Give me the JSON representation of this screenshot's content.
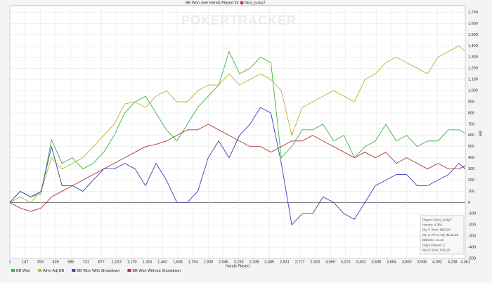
{
  "chart_data": {
    "type": "line",
    "title": "BB Won over Hands Played for",
    "player": "Nico_lucky7",
    "watermark": "POKERTRACKER",
    "x_label": "Hands Played",
    "y_label": "BB",
    "x": [
      1,
      100,
      200,
      300,
      400,
      500,
      600,
      700,
      800,
      900,
      1000,
      1100,
      1200,
      1300,
      1400,
      1500,
      1600,
      1700,
      1800,
      1900,
      2000,
      2100,
      2200,
      2300,
      2400,
      2500,
      2600,
      2700,
      2800,
      2900,
      3000,
      3100,
      3200,
      3300,
      3400,
      3500,
      3600,
      3700,
      3800,
      3900,
      4000,
      4100,
      4200,
      4300,
      4361
    ],
    "series": [
      {
        "name": "BB Won",
        "color": "#3cb43c",
        "values": [
          0,
          100,
          50,
          80,
          560,
          350,
          400,
          300,
          350,
          450,
          600,
          800,
          900,
          950,
          800,
          650,
          550,
          700,
          850,
          950,
          1050,
          1350,
          1150,
          1200,
          1300,
          1250,
          400,
          500,
          650,
          650,
          700,
          550,
          600,
          400,
          500,
          550,
          700,
          550,
          600,
          500,
          550,
          550,
          650,
          650,
          620
        ]
      },
      {
        "name": "All-in Adj BB",
        "color": "#b4b432",
        "values": [
          0,
          50,
          0,
          100,
          400,
          300,
          350,
          400,
          500,
          600,
          700,
          880,
          900,
          850,
          950,
          1000,
          900,
          900,
          1000,
          1050,
          1050,
          1150,
          1050,
          1100,
          1150,
          1100,
          1000,
          600,
          850,
          900,
          950,
          1000,
          950,
          900,
          1100,
          1150,
          1250,
          1300,
          1250,
          1200,
          1150,
          1300,
          1350,
          1400,
          1350
        ]
      },
      {
        "name": "BB Won With Showdown",
        "color": "#3c3cb4",
        "values": [
          0,
          100,
          50,
          100,
          500,
          150,
          150,
          100,
          200,
          300,
          300,
          350,
          300,
          150,
          350,
          200,
          0,
          0,
          100,
          400,
          550,
          400,
          600,
          700,
          850,
          800,
          350,
          -200,
          -100,
          -100,
          50,
          0,
          -100,
          -150,
          0,
          150,
          200,
          250,
          250,
          150,
          150,
          200,
          250,
          350,
          300
        ]
      },
      {
        "name": "BB Won Without Showdown",
        "color": "#b43232",
        "values": [
          0,
          -50,
          -80,
          -50,
          50,
          100,
          150,
          200,
          250,
          300,
          350,
          400,
          450,
          500,
          520,
          550,
          600,
          650,
          650,
          700,
          650,
          600,
          550,
          500,
          500,
          450,
          500,
          550,
          550,
          600,
          550,
          500,
          450,
          400,
          450,
          400,
          450,
          350,
          400,
          350,
          300,
          350,
          300,
          300,
          330
        ]
      }
    ],
    "xlim": [
      1,
      4361
    ],
    "xticks": [
      1,
      147,
      293,
      439,
      585,
      731,
      877,
      {
        "value": 1023,
        "label": "1,023"
      },
      {
        "value": 1170,
        "label": "1,170"
      },
      {
        "value": 1316,
        "label": "1,316"
      },
      {
        "value": 1462,
        "label": "1,462"
      },
      {
        "value": 1608,
        "label": "1,608"
      },
      {
        "value": 1754,
        "label": "1,754"
      },
      {
        "value": 1900,
        "label": "1,900"
      },
      {
        "value": 2046,
        "label": "2,046"
      },
      {
        "value": 2193,
        "label": "2,193"
      },
      {
        "value": 2339,
        "label": "2,339"
      },
      {
        "value": 2485,
        "label": "2,485"
      },
      {
        "value": 2631,
        "label": "2,631"
      },
      {
        "value": 2777,
        "label": "2,777"
      },
      {
        "value": 2923,
        "label": "2,923"
      },
      {
        "value": 3069,
        "label": "3,069"
      },
      {
        "value": 3215,
        "label": "3,215"
      },
      {
        "value": 3362,
        "label": "3,362"
      },
      {
        "value": 3508,
        "label": "3,508"
      },
      {
        "value": 3654,
        "label": "3,654"
      },
      {
        "value": 3800,
        "label": "3,800"
      },
      {
        "value": 3946,
        "label": "3,946"
      },
      {
        "value": 4092,
        "label": "4,092"
      },
      {
        "value": 4238,
        "label": "4,238"
      },
      {
        "value": 4361,
        "label": "4,361"
      }
    ],
    "ylim": [
      -500,
      1760
    ],
    "yticks": [
      -500,
      -400,
      -300,
      -200,
      -100,
      0,
      100,
      200,
      300,
      400,
      500,
      600,
      700,
      800,
      900,
      {
        "value": 1000,
        "label": "1,000"
      },
      {
        "value": 1100,
        "label": "1,100"
      },
      {
        "value": 1200,
        "label": "1,200"
      },
      {
        "value": 1300,
        "label": "1,300"
      },
      {
        "value": 1400,
        "label": "1,400"
      },
      {
        "value": 1500,
        "label": "1,500"
      },
      {
        "value": 1600,
        "label": "1,600"
      },
      {
        "value": 1700,
        "label": "1,700"
      }
    ],
    "grid": true,
    "info_box": [
      "Player: Nico_lucky7",
      "Hands: 4,361",
      "My C Won: $62.52",
      "My C All-In Adj: $133.38",
      "BB/100: 14.34",
      "Days Played: 2",
      "My C/ Dev: $35.26"
    ]
  }
}
